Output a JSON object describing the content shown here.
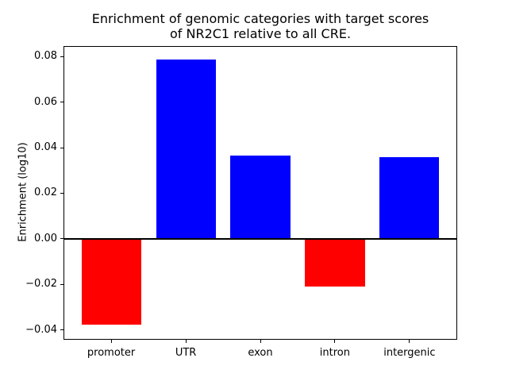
{
  "chart_data": {
    "type": "bar",
    "title": "Enrichment of genomic categories with target scores\nof NR2C1 relative to all CRE.",
    "xlabel": "",
    "ylabel": "Enrichment (log10)",
    "categories": [
      "promoter",
      "UTR",
      "exon",
      "intron",
      "intergenic"
    ],
    "values": [
      -0.0378,
      0.0788,
      0.0367,
      -0.0211,
      0.036
    ],
    "bar_colors": [
      "#ff0000",
      "#0000ff",
      "#0000ff",
      "#ff0000",
      "#0000ff"
    ],
    "positive_color": "#0000ff",
    "negative_color": "#ff0000",
    "ytick_values": [
      0.08,
      0.06,
      0.04,
      0.02,
      0.0,
      -0.02,
      -0.04
    ],
    "ytick_labels": [
      "0.08",
      "0.06",
      "0.04",
      "0.02",
      "0.00",
      "−0.02",
      "−0.04"
    ],
    "ylim": [
      -0.0443,
      0.0846
    ],
    "xlim": [
      -0.64,
      4.64
    ],
    "bar_width": 0.8,
    "zero_line": true,
    "grid": false,
    "legend": null,
    "background_color": "#ffffff",
    "axis_color": "#000000"
  }
}
